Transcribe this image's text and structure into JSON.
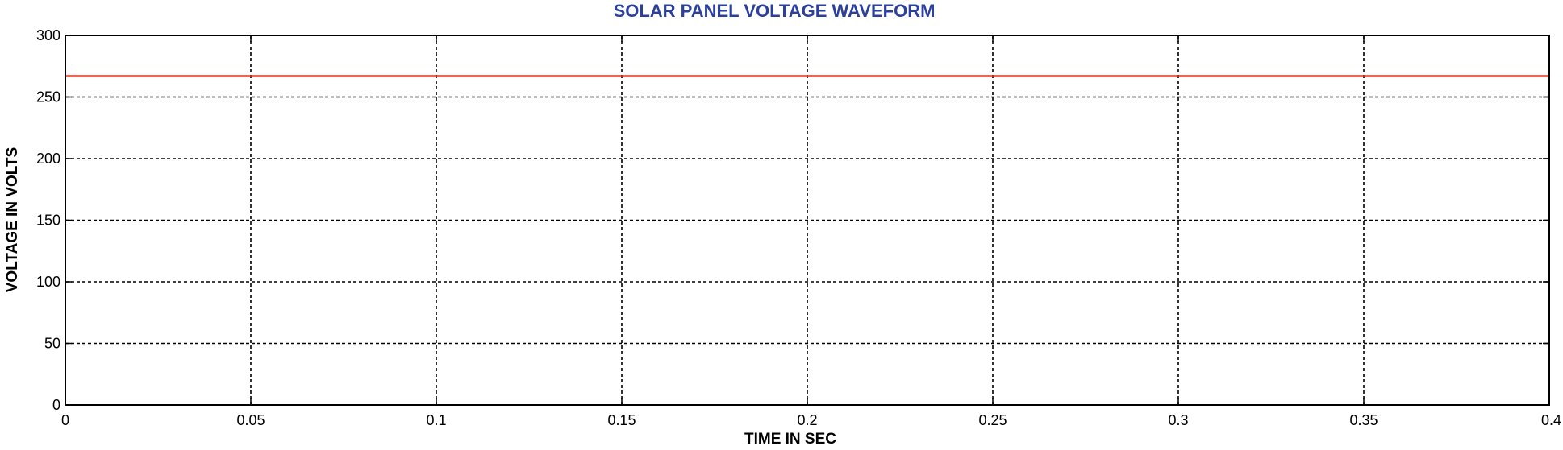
{
  "chart_data": {
    "type": "line",
    "title": "SOLAR PANEL VOLTAGE WAVEFORM",
    "xlabel": "TIME IN SEC",
    "ylabel": "VOLTAGE IN VOLTS",
    "xlim": [
      0,
      0.4
    ],
    "ylim": [
      0,
      300
    ],
    "xticks": [
      0,
      0.05,
      0.1,
      0.15,
      0.2,
      0.25,
      0.3,
      0.35,
      0.4
    ],
    "xtick_labels": [
      "0",
      "0.05",
      "0.1",
      "0.15",
      "0.2",
      "0.25",
      "0.3",
      "0.35",
      "0.4"
    ],
    "yticks": [
      0,
      50,
      100,
      150,
      200,
      250,
      300
    ],
    "ytick_labels": [
      "0",
      "50",
      "100",
      "150",
      "200",
      "250",
      "300"
    ],
    "grid": true,
    "series": [
      {
        "color": "#e8321e",
        "x": [
          0,
          0.4
        ],
        "y": [
          267,
          267
        ]
      }
    ],
    "colors": {
      "title": "#2b3f9e",
      "grid": "#000000",
      "axes": "#000000"
    }
  }
}
